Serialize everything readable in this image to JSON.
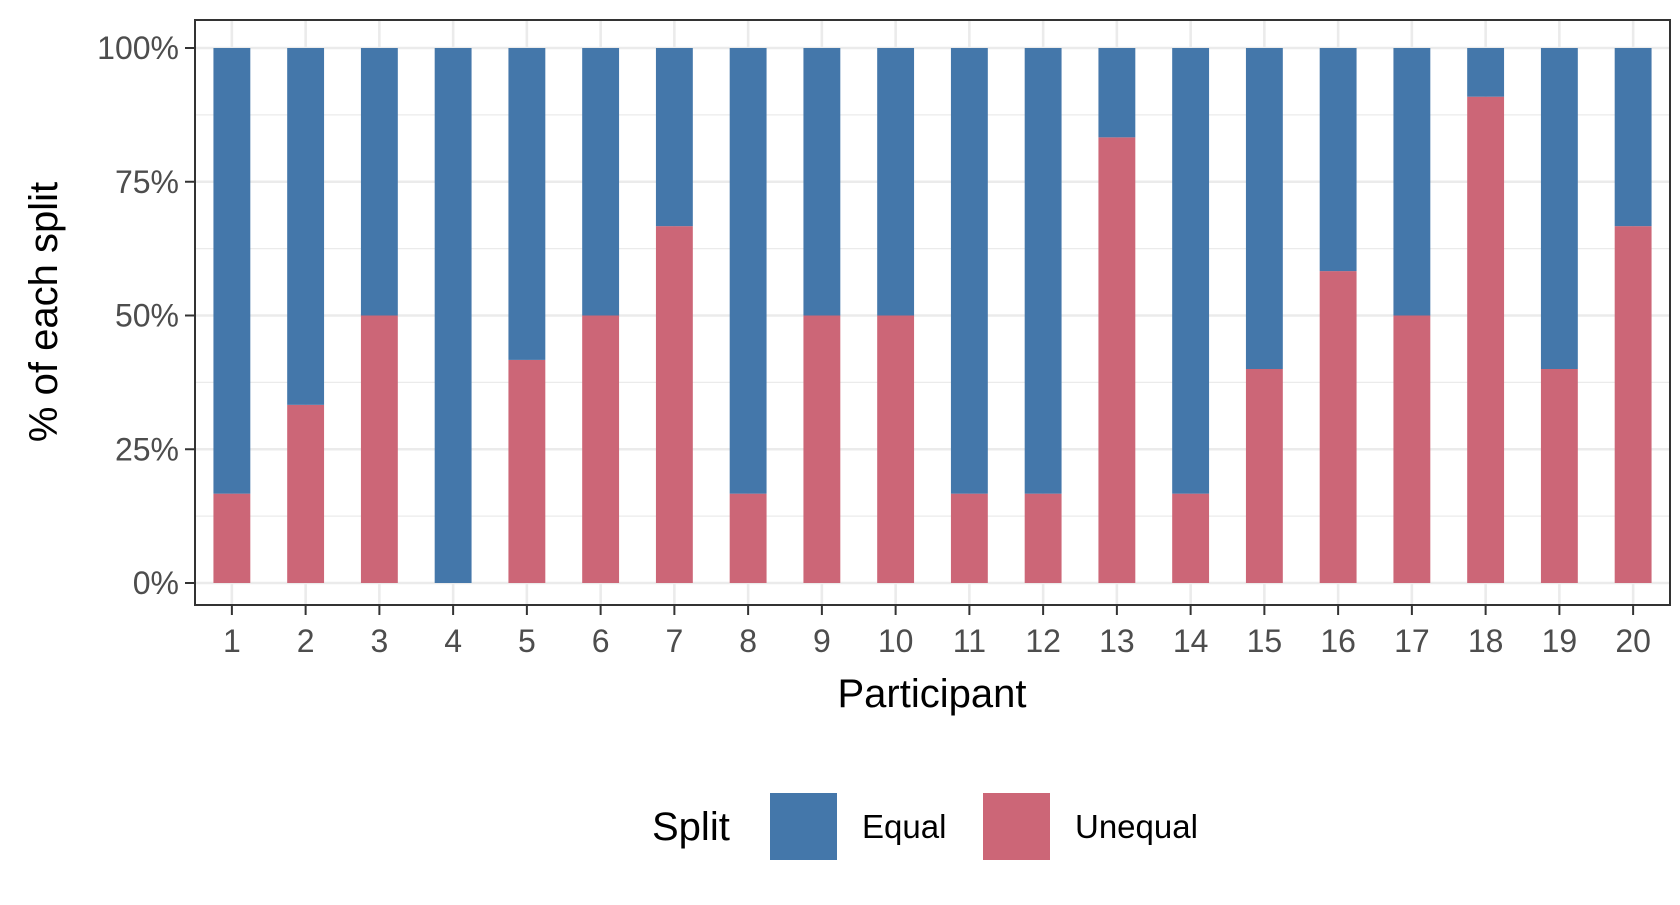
{
  "chart_data": {
    "type": "bar",
    "stacked": true,
    "xlabel": "Participant",
    "ylabel": "% of each split",
    "categories": [
      "1",
      "2",
      "3",
      "4",
      "5",
      "6",
      "7",
      "8",
      "9",
      "10",
      "11",
      "12",
      "13",
      "14",
      "15",
      "16",
      "17",
      "18",
      "19",
      "20"
    ],
    "yticks": [
      "0%",
      "25%",
      "50%",
      "75%",
      "100%"
    ],
    "ylim": [
      0,
      100
    ],
    "grid": true,
    "legend": {
      "title": "Split",
      "position": "bottom"
    },
    "series": [
      {
        "name": "Unequal",
        "color": "#CC6677",
        "values": [
          16.7,
          33.3,
          50,
          0,
          41.7,
          50,
          66.7,
          16.7,
          50,
          50,
          16.7,
          16.7,
          83.3,
          16.7,
          40,
          58.3,
          50,
          90.9,
          40,
          66.7
        ]
      },
      {
        "name": "Equal",
        "color": "#4477AA",
        "values": [
          83.3,
          66.7,
          50,
          100,
          58.3,
          50,
          33.3,
          83.3,
          50,
          50,
          83.3,
          83.3,
          16.7,
          83.3,
          60,
          41.7,
          50,
          9.1,
          60,
          33.3
        ]
      }
    ]
  }
}
